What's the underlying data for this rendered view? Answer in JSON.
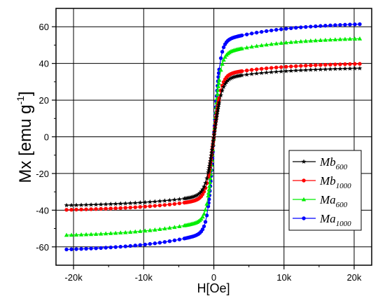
{
  "chart_data": {
    "type": "line",
    "title": "",
    "xlabel": "H[Oe]",
    "ylabel": {
      "text": "Mx [emu g",
      "sup": "-1",
      "close": "]"
    },
    "xlim": [
      -22500,
      22500
    ],
    "ylim": [
      -70,
      70
    ],
    "xticks": [
      -20000,
      -10000,
      0,
      10000,
      20000
    ],
    "xtick_labels": [
      "-20k",
      "-10k",
      "0",
      "10k",
      "20k"
    ],
    "yticks": [
      -60,
      -40,
      -20,
      0,
      20,
      40,
      60
    ],
    "ytick_labels": [
      "-60",
      "-40",
      "-20",
      "0",
      "20",
      "40",
      "60"
    ],
    "grid": true,
    "legend_position": "lower-right",
    "series": [
      {
        "name": "Mb",
        "subscript": "600",
        "color": "#000000",
        "marker": "star",
        "ms": 38.0,
        "chi": 5.6e-05,
        "h0": 520
      },
      {
        "name": "Mb",
        "subscript": "1000",
        "color": "#ff0000",
        "marker": "circle",
        "ms": 40.5,
        "chi": 6e-05,
        "h0": 480
      },
      {
        "name": "Ma",
        "subscript": "600",
        "color": "#00ee00",
        "marker": "triangle",
        "ms": 54.5,
        "chi": 6.2e-05,
        "h0": 420
      },
      {
        "name": "Ma",
        "subscript": "1000",
        "color": "#0000ff",
        "marker": "circle",
        "ms": 62.5,
        "chi": 6.4e-05,
        "h0": 400
      }
    ],
    "x_range": [
      -21000,
      21000
    ]
  }
}
